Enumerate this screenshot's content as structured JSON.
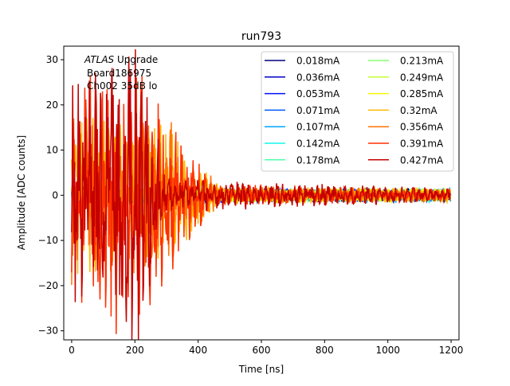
{
  "chart_data": {
    "type": "line",
    "title": "run793",
    "xlabel": "Time [ns]",
    "ylabel": "Amplitude [ADC counts]",
    "xlim": [
      -25,
      1225
    ],
    "ylim": [
      -32,
      33
    ],
    "xticks": [
      0,
      200,
      400,
      600,
      800,
      1000,
      1200
    ],
    "yticks": [
      -30,
      -20,
      -10,
      0,
      10,
      20,
      30
    ],
    "annotation": {
      "line1_italic": "ATLAS",
      "line1_rest": " Upgrade",
      "line2": "Board186975",
      "line3": "Ch002 35dB lo"
    },
    "legend": {
      "placement": "top-right",
      "columns": 2
    },
    "series_note": "Noisy oscillating pulses: large-amplitude ringing in 0–500 ns, baseline noise (about ±1 count) from 500 to 1200 ns.",
    "series": [
      {
        "name": "0.018mA",
        "color": "#00007f",
        "envelope": [
          [
            0,
            1.5
          ],
          [
            500,
            1.2
          ],
          [
            1200,
            1.2
          ]
        ]
      },
      {
        "name": "0.036mA",
        "color": "#0000c8",
        "envelope": [
          [
            0,
            1.5
          ],
          [
            500,
            1.2
          ],
          [
            1200,
            1.2
          ]
        ]
      },
      {
        "name": "0.053mA",
        "color": "#0010ff",
        "envelope": [
          [
            0,
            1.5
          ],
          [
            500,
            1.2
          ],
          [
            1200,
            1.2
          ]
        ]
      },
      {
        "name": "0.071mA",
        "color": "#0058ff",
        "envelope": [
          [
            0,
            1.5
          ],
          [
            500,
            1.2
          ],
          [
            1200,
            1.2
          ]
        ]
      },
      {
        "name": "0.107mA",
        "color": "#00a4ff",
        "envelope": [
          [
            0,
            1.5
          ],
          [
            500,
            1.2
          ],
          [
            1200,
            1.2
          ]
        ]
      },
      {
        "name": "0.142mA",
        "color": "#0ff8ee",
        "envelope": [
          [
            0,
            1.5
          ],
          [
            500,
            1.2
          ],
          [
            1200,
            1.2
          ]
        ]
      },
      {
        "name": "0.178mA",
        "color": "#4dffaa",
        "envelope": [
          [
            0,
            1.5
          ],
          [
            500,
            1.2
          ],
          [
            1200,
            1.2
          ]
        ]
      },
      {
        "name": "0.213mA",
        "color": "#87ff70",
        "envelope": [
          [
            0,
            1.5
          ],
          [
            500,
            1.2
          ],
          [
            1200,
            1.2
          ]
        ]
      },
      {
        "name": "0.249mA",
        "color": "#c4ff33",
        "envelope": [
          [
            0,
            1.5
          ],
          [
            500,
            1.2
          ],
          [
            1200,
            1.2
          ]
        ]
      },
      {
        "name": "0.285mA",
        "color": "#f4f802",
        "envelope": [
          [
            0,
            1.5
          ],
          [
            500,
            1.2
          ],
          [
            1200,
            1.2
          ]
        ]
      },
      {
        "name": "0.32mA",
        "color": "#ffb900",
        "envelope": [
          [
            0,
            15
          ],
          [
            300,
            12
          ],
          [
            480,
            1.5
          ],
          [
            1200,
            1.2
          ]
        ]
      },
      {
        "name": "0.356mA",
        "color": "#ff7300",
        "envelope": [
          [
            0,
            16
          ],
          [
            300,
            14
          ],
          [
            470,
            1.5
          ],
          [
            1200,
            1.2
          ]
        ]
      },
      {
        "name": "0.391mA",
        "color": "#ff3000",
        "envelope": [
          [
            0,
            18
          ],
          [
            150,
            26
          ],
          [
            250,
            20
          ],
          [
            350,
            10
          ],
          [
            460,
            2
          ],
          [
            1200,
            1.2
          ]
        ]
      },
      {
        "name": "0.427mA",
        "color": "#c40000",
        "envelope": [
          [
            0,
            20
          ],
          [
            100,
            22
          ],
          [
            210,
            28
          ],
          [
            270,
            12
          ],
          [
            300,
            3
          ],
          [
            1200,
            1.2
          ]
        ]
      }
    ]
  }
}
